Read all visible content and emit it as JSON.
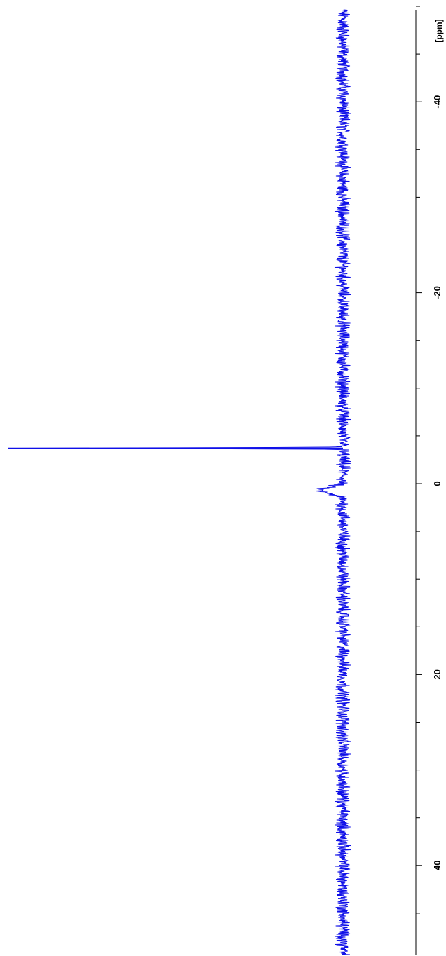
{
  "chart_data": {
    "type": "line",
    "orientation": "rotated-vertical",
    "axis_label": "[ppm]",
    "axis_range": [
      -50,
      51
    ],
    "major_ticks": [
      -40,
      -20,
      0,
      20,
      40
    ],
    "tick_labels": [
      "-40",
      "-20",
      "0",
      "20",
      "40"
    ],
    "minor_tick_step": 5,
    "baseline_noise_amplitude": 0.15,
    "series": [
      {
        "peaks": [
          {
            "ppm": -3.7,
            "intensity": 1.0
          },
          {
            "ppm": 0.7,
            "intensity": 0.07
          }
        ]
      }
    ],
    "grid": false,
    "legend": "none",
    "colors": {
      "trace": "#1010e8",
      "axis": "#000000",
      "background": "#ffffff"
    }
  }
}
